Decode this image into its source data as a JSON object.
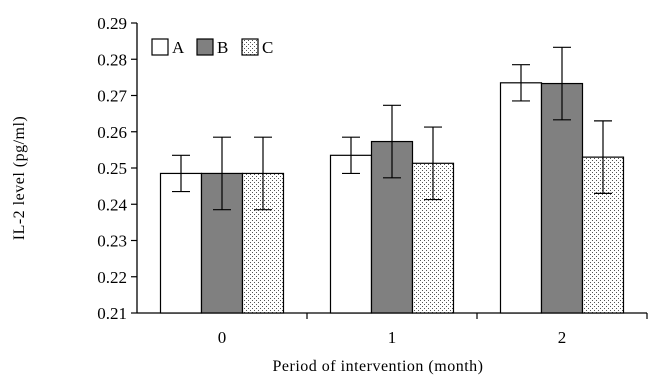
{
  "chart_data": {
    "type": "bar",
    "title": "",
    "xlabel": "Period of intervention (month)",
    "ylabel": "IL-2 level (pg/ml)",
    "categories": [
      "0",
      "1",
      "2"
    ],
    "ylim": [
      0.21,
      0.29
    ],
    "yticks": [
      "0.21",
      "0.22",
      "0.23",
      "0.24",
      "0.25",
      "0.26",
      "0.27",
      "0.28",
      "0.29"
    ],
    "grid": false,
    "legend_position": "top-left",
    "series": [
      {
        "name": "A",
        "values": [
          0.2485,
          0.2535,
          0.2735
        ],
        "errors": [
          0.005,
          0.005,
          0.005
        ],
        "fill": "#ffffff",
        "pattern": "none"
      },
      {
        "name": "B",
        "values": [
          0.2485,
          0.2573,
          0.2733
        ],
        "errors": [
          0.01,
          0.01,
          0.01
        ],
        "fill": "#808080",
        "pattern": "none"
      },
      {
        "name": "C",
        "values": [
          0.2485,
          0.2513,
          0.253
        ],
        "errors": [
          0.01,
          0.01,
          0.01
        ],
        "fill": "#ffffff",
        "pattern": "dots"
      }
    ]
  }
}
